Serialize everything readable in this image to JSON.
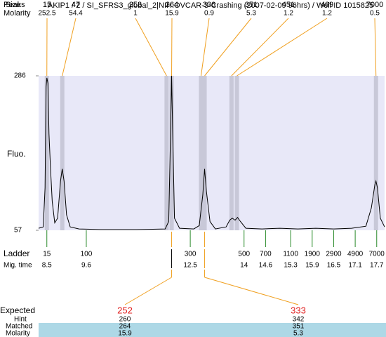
{
  "chart_data": {
    "type": "line",
    "title": "AKIP1 / 2 / SI_SFRS3_global_2|NIH:OVCAR-3-Crashing (2007-02-09 96hrs) / Well ID 1015825",
    "peaks_label": "Peaks",
    "size_label": "Size",
    "molarity_label": "Molarity",
    "ylabel": "Fluo.",
    "ylim": [
      57,
      286
    ],
    "yticks": [
      57,
      286
    ],
    "xlim": [
      8.27,
      17.92
    ],
    "color": "#000000",
    "x": [
      8.27,
      8.4,
      8.45,
      8.48,
      8.5,
      8.53,
      8.56,
      8.6,
      8.65,
      8.72,
      8.8,
      8.88,
      8.93,
      8.98,
      9.05,
      9.15,
      9.4,
      10,
      11,
      11.8,
      11.9,
      11.95,
      11.98,
      12.01,
      12.06,
      12.2,
      12.6,
      12.75,
      12.85,
      12.9,
      12.95,
      13.05,
      13.2,
      13.5,
      13.6,
      13.67,
      13.75,
      13.82,
      13.9,
      14.05,
      14.5,
      15,
      15.5,
      16,
      16.5,
      17,
      17.4,
      17.55,
      17.65,
      17.68,
      17.72,
      17.8,
      17.92
    ],
    "values": [
      60,
      62,
      120,
      270,
      283,
      275,
      200,
      150,
      100,
      68,
      75,
      130,
      148,
      130,
      80,
      62,
      59,
      58,
      58,
      59,
      70,
      200,
      286,
      200,
      75,
      60,
      59,
      64,
      110,
      148,
      115,
      70,
      59,
      62,
      72,
      75,
      72,
      76,
      70,
      60,
      59,
      60,
      59,
      60,
      59,
      60,
      63,
      90,
      125,
      130,
      120,
      75,
      62
    ],
    "peaks": [
      {
        "size": 15,
        "molarity": 252.5,
        "time": 8.5
      },
      {
        "size": 47,
        "molarity": 54.4,
        "time": 8.93
      },
      {
        "size": 253,
        "molarity": 1,
        "time": 11.84
      },
      {
        "size": 264,
        "molarity": 15.9,
        "time": 11.98
      },
      {
        "size": 336,
        "molarity": 0.9,
        "time": 12.8
      },
      {
        "size": 351,
        "molarity": 5.3,
        "time": 12.9
      },
      {
        "size": 451,
        "molarity": 1.2,
        "time": 13.65
      },
      {
        "size": 469,
        "molarity": 1.2,
        "time": 13.8
      },
      {
        "size": 7000,
        "molarity": 0.5,
        "time": 17.68
      }
    ],
    "ladder": {
      "label": "Ladder",
      "time_label": "Mig. time",
      "sizes": [
        15,
        100,
        300,
        500,
        700,
        1100,
        1900,
        2900,
        4900,
        7000
      ],
      "times": [
        8.5,
        9.6,
        12.5,
        14,
        14.6,
        15.3,
        15.9,
        16.5,
        17.1,
        17.7
      ]
    },
    "expected": {
      "label": "Expected",
      "hint_label": "Hint",
      "matched_label": "Matched",
      "molarity_label": "Molarity",
      "items": [
        {
          "expected": 252,
          "hint": 260,
          "matched": 264,
          "molarity": 15.9,
          "peak": 3
        },
        {
          "expected": 333,
          "hint": 342,
          "matched": 351,
          "molarity": 5.3,
          "peak": 5
        }
      ]
    }
  }
}
